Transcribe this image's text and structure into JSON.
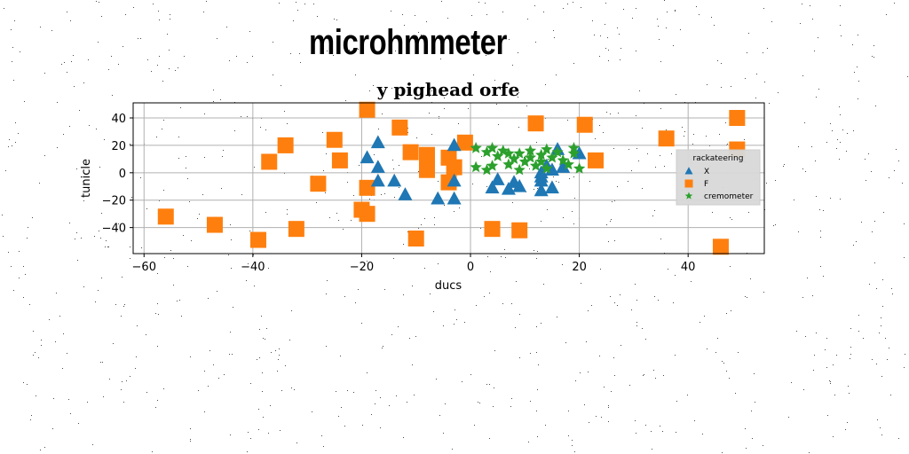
{
  "header": {
    "title": "microhmmeter"
  },
  "chart_data": {
    "type": "scatter",
    "title": "y pighead orfe",
    "xlabel": "ducs",
    "ylabel": "tunicle",
    "xlim": [
      -62,
      54
    ],
    "ylim": [
      -59,
      51
    ],
    "xticks": [
      -60,
      -40,
      -20,
      0,
      20,
      40
    ],
    "yticks": [
      -40,
      -20,
      0,
      20,
      40
    ],
    "xtick_labels": [
      "−60",
      "−40",
      "−20",
      "0",
      "20",
      "40"
    ],
    "ytick_labels": [
      "−40",
      "−20",
      "0",
      "20",
      "40"
    ],
    "grid": true,
    "legend": {
      "title": "rackateering",
      "position": "right"
    },
    "series": [
      {
        "name": "X",
        "marker": "triangle",
        "color": "#1f77b4",
        "points": [
          [
            -19,
            11
          ],
          [
            -17,
            22
          ],
          [
            -17,
            4
          ],
          [
            -17,
            -6
          ],
          [
            -14,
            -6
          ],
          [
            -12,
            -16
          ],
          [
            -6,
            -19
          ],
          [
            -3,
            -19
          ],
          [
            -3,
            20
          ],
          [
            -3,
            -6
          ],
          [
            4,
            -11
          ],
          [
            5,
            -5
          ],
          [
            7,
            -12
          ],
          [
            8,
            -7
          ],
          [
            9,
            -10
          ],
          [
            13,
            -6
          ],
          [
            13,
            -13
          ],
          [
            13,
            0
          ],
          [
            13,
            -3
          ],
          [
            14,
            5
          ],
          [
            15,
            -11
          ],
          [
            15,
            2
          ],
          [
            16,
            17
          ],
          [
            17,
            4
          ],
          [
            20,
            14
          ]
        ]
      },
      {
        "name": "F",
        "marker": "square",
        "color": "#ff7f0e",
        "points": [
          [
            -56,
            -32
          ],
          [
            -47,
            -38
          ],
          [
            -39,
            -49
          ],
          [
            -37,
            8
          ],
          [
            -34,
            20
          ],
          [
            -32,
            -41
          ],
          [
            -28,
            -8
          ],
          [
            -25,
            24
          ],
          [
            -24,
            9
          ],
          [
            -20,
            -27
          ],
          [
            -19,
            46
          ],
          [
            -19,
            -30
          ],
          [
            -19,
            -11
          ],
          [
            -13,
            33
          ],
          [
            -11,
            15
          ],
          [
            -10,
            -48
          ],
          [
            -8,
            2
          ],
          [
            -8,
            13
          ],
          [
            -4,
            11
          ],
          [
            -4,
            -7
          ],
          [
            -3,
            4
          ],
          [
            -1,
            22
          ],
          [
            4,
            -41
          ],
          [
            9,
            -42
          ],
          [
            12,
            36
          ],
          [
            21,
            35
          ],
          [
            23,
            9
          ],
          [
            36,
            25
          ],
          [
            46,
            -54
          ],
          [
            49,
            40
          ],
          [
            49,
            17
          ]
        ]
      },
      {
        "name": "cremometer",
        "marker": "star",
        "color": "#2ca02c",
        "points": [
          [
            1,
            18
          ],
          [
            1,
            4
          ],
          [
            3,
            2
          ],
          [
            3,
            15
          ],
          [
            4,
            5
          ],
          [
            4,
            18
          ],
          [
            5,
            12
          ],
          [
            6,
            16
          ],
          [
            7,
            14
          ],
          [
            7,
            6
          ],
          [
            8,
            10
          ],
          [
            9,
            2
          ],
          [
            9,
            14
          ],
          [
            10,
            8
          ],
          [
            11,
            11
          ],
          [
            12,
            5
          ],
          [
            11,
            16
          ],
          [
            13,
            8
          ],
          [
            13,
            13
          ],
          [
            14,
            3
          ],
          [
            14,
            17
          ],
          [
            15,
            11
          ],
          [
            16,
            15
          ],
          [
            17,
            9
          ],
          [
            18,
            6
          ],
          [
            19,
            18
          ],
          [
            19,
            14
          ],
          [
            20,
            3
          ]
        ]
      }
    ]
  }
}
